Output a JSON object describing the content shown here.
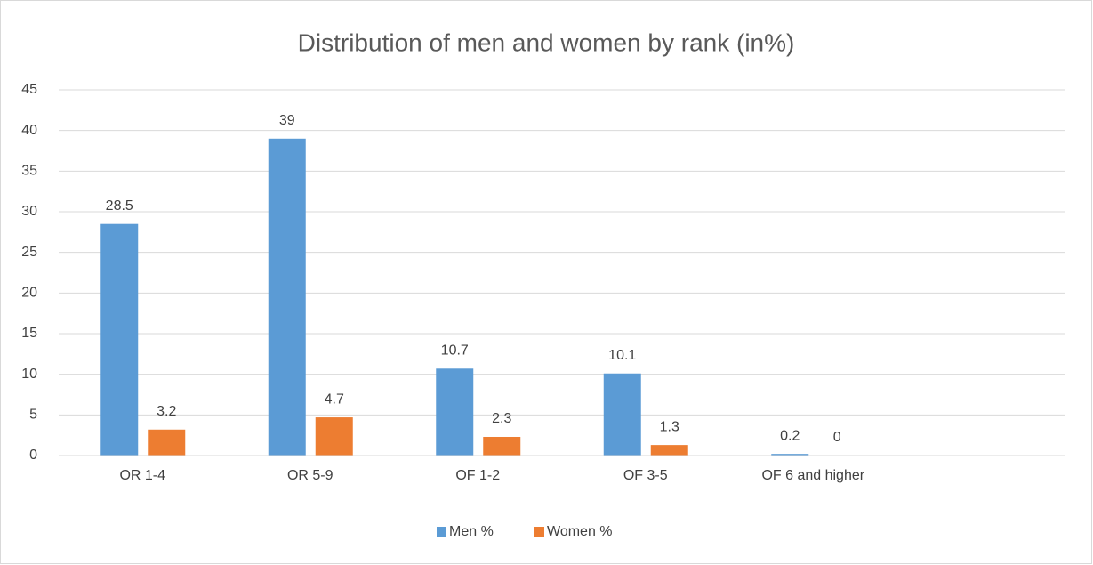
{
  "chart_data": {
    "type": "bar",
    "title": "Distribution of men and women by rank (in%)",
    "categories": [
      "OR 1-4",
      "OR 5-9",
      "OF 1-2",
      "OF 3-5",
      "OF 6 and higher",
      null
    ],
    "series": [
      {
        "name": "Men %",
        "color": "#5b9bd5",
        "values": [
          28.5,
          39,
          10.7,
          10.1,
          0.2,
          null
        ]
      },
      {
        "name": "Women %",
        "color": "#ed7d31",
        "values": [
          3.2,
          4.7,
          2.3,
          1.3,
          0,
          null
        ]
      }
    ],
    "ylim": [
      0,
      45
    ],
    "yticks": [
      0,
      5,
      10,
      15,
      20,
      25,
      30,
      35,
      40,
      45
    ],
    "grid": true,
    "legend": "bottom"
  }
}
